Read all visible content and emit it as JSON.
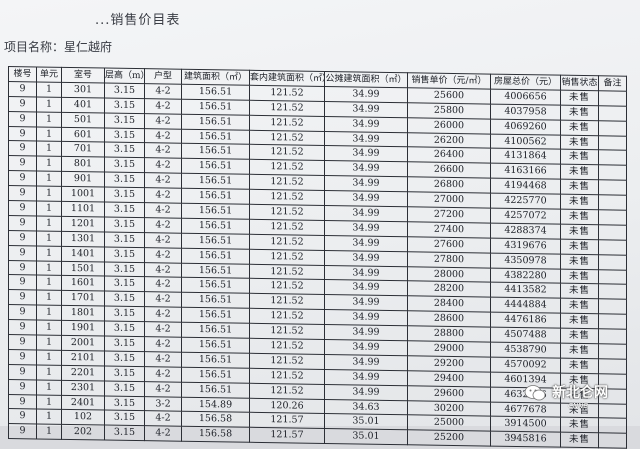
{
  "header": {
    "title": "...销售价目表",
    "project": "项目名称：星仁越府"
  },
  "table": {
    "columns": [
      "楼号",
      "单元",
      "室号",
      "层高（m）",
      "户型",
      "建筑面积（㎡）",
      "套内建筑面积（㎡）",
      "公摊建筑面积（㎡）",
      "销售单价（元/㎡）",
      "房屋总价（元）",
      "销售状态",
      "备注"
    ],
    "rows": [
      [
        "9",
        "1",
        "301",
        "3.15",
        "4-2",
        "156.51",
        "121.52",
        "34.99",
        "25600",
        "4006656",
        "未售",
        ""
      ],
      [
        "9",
        "1",
        "401",
        "3.15",
        "4-2",
        "156.51",
        "121.52",
        "34.99",
        "25800",
        "4037958",
        "未售",
        ""
      ],
      [
        "9",
        "1",
        "501",
        "3.15",
        "4-2",
        "156.51",
        "121.52",
        "34.99",
        "26000",
        "4069260",
        "未售",
        ""
      ],
      [
        "9",
        "1",
        "601",
        "3.15",
        "4-2",
        "156.51",
        "121.52",
        "34.99",
        "26200",
        "4100562",
        "未售",
        ""
      ],
      [
        "9",
        "1",
        "701",
        "3.15",
        "4-2",
        "156.51",
        "121.52",
        "34.99",
        "26400",
        "4131864",
        "未售",
        ""
      ],
      [
        "9",
        "1",
        "801",
        "3.15",
        "4-2",
        "156.51",
        "121.52",
        "34.99",
        "26600",
        "4163166",
        "未售",
        ""
      ],
      [
        "9",
        "1",
        "901",
        "3.15",
        "4-2",
        "156.51",
        "121.52",
        "34.99",
        "26800",
        "4194468",
        "未售",
        ""
      ],
      [
        "9",
        "1",
        "1001",
        "3.15",
        "4-2",
        "156.51",
        "121.52",
        "34.99",
        "27000",
        "4225770",
        "未售",
        ""
      ],
      [
        "9",
        "1",
        "1101",
        "3.15",
        "4-2",
        "156.51",
        "121.52",
        "34.99",
        "27200",
        "4257072",
        "未售",
        ""
      ],
      [
        "9",
        "1",
        "1201",
        "3.15",
        "4-2",
        "156.51",
        "121.52",
        "34.99",
        "27400",
        "4288374",
        "未售",
        ""
      ],
      [
        "9",
        "1",
        "1301",
        "3.15",
        "4-2",
        "156.51",
        "121.52",
        "34.99",
        "27600",
        "4319676",
        "未售",
        ""
      ],
      [
        "9",
        "1",
        "1401",
        "3.15",
        "4-2",
        "156.51",
        "121.52",
        "34.99",
        "27800",
        "4350978",
        "未售",
        ""
      ],
      [
        "9",
        "1",
        "1501",
        "3.15",
        "4-2",
        "156.51",
        "121.52",
        "34.99",
        "28000",
        "4382280",
        "未售",
        ""
      ],
      [
        "9",
        "1",
        "1601",
        "3.15",
        "4-2",
        "156.51",
        "121.52",
        "34.99",
        "28200",
        "4413582",
        "未售",
        ""
      ],
      [
        "9",
        "1",
        "1701",
        "3.15",
        "4-2",
        "156.51",
        "121.52",
        "34.99",
        "28400",
        "4444884",
        "未售",
        ""
      ],
      [
        "9",
        "1",
        "1801",
        "3.15",
        "4-2",
        "156.51",
        "121.52",
        "34.99",
        "28600",
        "4476186",
        "未售",
        ""
      ],
      [
        "9",
        "1",
        "1901",
        "3.15",
        "4-2",
        "156.51",
        "121.52",
        "34.99",
        "28800",
        "4507488",
        "未售",
        ""
      ],
      [
        "9",
        "1",
        "2001",
        "3.15",
        "4-2",
        "156.51",
        "121.52",
        "34.99",
        "29000",
        "4538790",
        "未售",
        ""
      ],
      [
        "9",
        "1",
        "2101",
        "3.15",
        "4-2",
        "156.51",
        "121.52",
        "34.99",
        "29200",
        "4570092",
        "未售",
        ""
      ],
      [
        "9",
        "1",
        "2201",
        "3.15",
        "4-2",
        "156.51",
        "121.52",
        "34.99",
        "29400",
        "4601394",
        "未售",
        ""
      ],
      [
        "9",
        "1",
        "2301",
        "3.15",
        "4-2",
        "156.51",
        "121.52",
        "34.99",
        "29600",
        "4632696",
        "未售",
        ""
      ],
      [
        "9",
        "1",
        "2401",
        "3.15",
        "3-2",
        "154.89",
        "120.26",
        "34.63",
        "30200",
        "4677678",
        "未售",
        ""
      ],
      [
        "9",
        "1",
        "102",
        "3.15",
        "4-2",
        "156.58",
        "121.57",
        "35.01",
        "25000",
        "3914500",
        "未售",
        ""
      ],
      [
        "9",
        "1",
        "202",
        "3.15",
        "4-2",
        "156.58",
        "121.57",
        "35.01",
        "25200",
        "3945816",
        "未售",
        ""
      ]
    ]
  },
  "watermark": {
    "text": "新北仑网",
    "sub": "CNNB",
    "icon": "wechat-icon",
    "color": "#ffffff"
  }
}
